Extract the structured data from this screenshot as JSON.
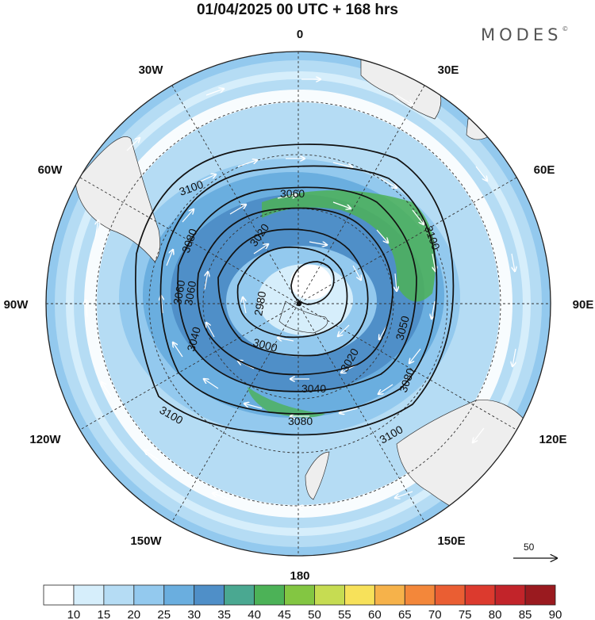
{
  "title": "01/04/2025  00 UTC  + 168 hrs",
  "brand": "MODES",
  "brand_mark": "©",
  "longitude_labels": {
    "n0": "0",
    "e30": "30E",
    "e60": "60E",
    "e90": "90E",
    "e120": "120E",
    "e150": "150E",
    "s180": "180",
    "w150": "150W",
    "w120": "120W",
    "w90": "90W",
    "w60": "60W",
    "w30": "30W"
  },
  "contour_labels": [
    "3100",
    "3080",
    "3060",
    "3060",
    "3020",
    "3060",
    "2980",
    "3040",
    "3000",
    "3020",
    "3040",
    "3050",
    "3080",
    "3100",
    "3080",
    "3100",
    "3100"
  ],
  "reference_vector": {
    "value": "50"
  },
  "colorbar": {
    "levels": [
      "10",
      "15",
      "20",
      "25",
      "30",
      "35",
      "40",
      "45",
      "50",
      "55",
      "60",
      "65",
      "70",
      "75",
      "80",
      "85",
      "90"
    ],
    "colors": [
      "#ffffff",
      "#d6eefb",
      "#b5dcf4",
      "#93c9ee",
      "#6aaedf",
      "#4f8fc8",
      "#4aa891",
      "#4cb257",
      "#83c642",
      "#c6dc52",
      "#f7e15a",
      "#f6b24a",
      "#f3873a",
      "#ea5e33",
      "#dc3a2e",
      "#c2242a",
      "#9a1a1f"
    ]
  },
  "palette": {
    "land": "#eeeeee",
    "jet_core": "#4cb257",
    "wind_mid": "#6aaedf",
    "wind_low": "#b5dcf4"
  }
}
